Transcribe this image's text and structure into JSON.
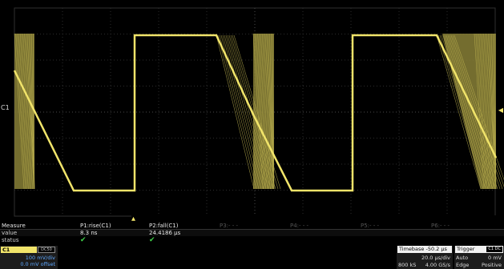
{
  "measure": {
    "header": [
      "Measure",
      "P1:rise(C1)",
      "P2:fall(C1)",
      "P3:- - -",
      "P4:- - -",
      "P5:- - -",
      "P6:- - -"
    ],
    "value_label": "value",
    "values": [
      "8.3 ns",
      "24.4186 µs"
    ],
    "status_label": "status",
    "status": [
      "✔",
      "✔"
    ]
  },
  "channel": {
    "name": "C1",
    "coupling": "DC50",
    "vdiv": "100 mV/div",
    "offset": "0.0 mV offset"
  },
  "timebase": {
    "title": "Timebase -50.2 µs",
    "tdiv": "20.0 µs/div",
    "samples": "800 kS",
    "rate": "4.00 GS/s"
  },
  "trigger": {
    "title": "Trigger",
    "badge": "C1 DC",
    "mode": "Auto",
    "level": "0 mV",
    "type": "Edge",
    "slope": "Positive"
  },
  "colors": {
    "trace": "#f1e46a",
    "grid": "#3a3a3a",
    "offset_text": "#5ea8ff"
  },
  "icons": {
    "left_marker": "level-marker-icon",
    "right_marker": "trigger-level-icon",
    "bottom_marker": "trigger-position-icon"
  }
}
